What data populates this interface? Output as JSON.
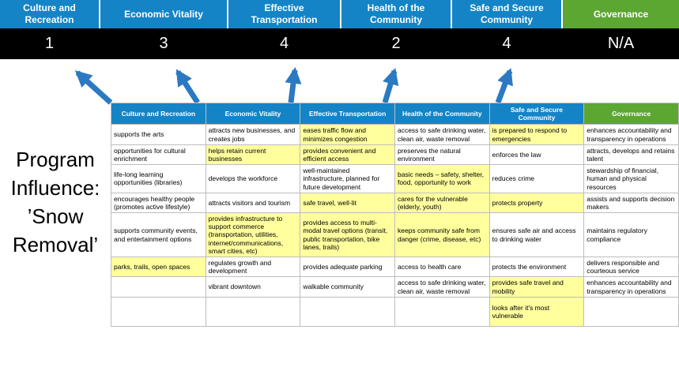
{
  "title": {
    "lines": [
      "Program",
      "Influence:",
      "’Snow",
      "Removal’"
    ]
  },
  "banner": {
    "columns": [
      {
        "label": "Culture and Recreation",
        "score": "1"
      },
      {
        "label": "Economic Vitality",
        "score": "3"
      },
      {
        "label": "Effective Transportation",
        "score": "4"
      },
      {
        "label": "Health of the Community",
        "score": "2"
      },
      {
        "label": "Safe and Secure Community",
        "score": "4"
      },
      {
        "label": "Governance",
        "score": "N/A"
      }
    ]
  },
  "colors": {
    "header_blue": "#1484c6",
    "header_green": "#5ca632",
    "highlight_yellow": "#ffff9e",
    "score_bar_black": "#000000",
    "arrow_blue": "#2b79c2",
    "grid_gray": "#bdbdbd"
  },
  "matrix": {
    "headers": [
      "Culture and Recreation",
      "Economic Vitality",
      "Effective Transportation",
      "Health of the Community",
      "Safe and Secure Community",
      "Governance"
    ],
    "rows": [
      [
        {
          "text": "supports the arts",
          "hl": false
        },
        {
          "text": "attracts new businesses, and creates jobs",
          "hl": false
        },
        {
          "text": "eases traffic flow and minimizes congestion",
          "hl": true
        },
        {
          "text": "access to safe drinking water, clean air, waste removal",
          "hl": false
        },
        {
          "text": "is prepared to respond to emergencies",
          "hl": true
        },
        {
          "text": "enhances accountability and transparency in operations",
          "hl": false
        }
      ],
      [
        {
          "text": "opportunities for cultural enrichment",
          "hl": false
        },
        {
          "text": "helps retain current businesses",
          "hl": true
        },
        {
          "text": "provides convenient and efficient access",
          "hl": true
        },
        {
          "text": "preserves the natural environment",
          "hl": false
        },
        {
          "text": "enforces the law",
          "hl": false
        },
        {
          "text": "attracts, develops and retains talent",
          "hl": false
        }
      ],
      [
        {
          "text": "life-long learning opportunities (libraries)",
          "hl": false
        },
        {
          "text": "develops the workforce",
          "hl": false
        },
        {
          "text": "well-maintained infrastructure, planned for future development",
          "hl": false
        },
        {
          "text": "basic needs – safety, shelter, food, opportunity to work",
          "hl": true
        },
        {
          "text": "reduces crime",
          "hl": false
        },
        {
          "text": "stewardship of financial, human and physical resources",
          "hl": false
        }
      ],
      [
        {
          "text": "encourages healthy people (promotes active lifestyle)",
          "hl": false
        },
        {
          "text": "attracts visitors and tourism",
          "hl": false
        },
        {
          "text": "safe travel, well-lit",
          "hl": true
        },
        {
          "text": "cares for the vulnerable (elderly, youth)",
          "hl": true
        },
        {
          "text": "protects property",
          "hl": true
        },
        {
          "text": "assists and supports decision makers",
          "hl": false
        }
      ],
      [
        {
          "text": "supports community events, and entertainment options",
          "hl": false
        },
        {
          "text": "provides infrastructure to support commerce (transportation, utilities, internet/communications, smart cities, etc)",
          "hl": true
        },
        {
          "text": "provides access to multi-modal travel options (transit, public transportation, bike lanes, trails)",
          "hl": true
        },
        {
          "text": "keeps community safe from danger (crime, disease, etc)",
          "hl": true
        },
        {
          "text": "ensures safe air and access to drinking water",
          "hl": false
        },
        {
          "text": "maintains regulatory compliance",
          "hl": false
        }
      ],
      [
        {
          "text": "parks, trails, open spaces",
          "hl": true
        },
        {
          "text": "regulates growth and development",
          "hl": false
        },
        {
          "text": "provides adequate parking",
          "hl": false
        },
        {
          "text": "access to health care",
          "hl": false
        },
        {
          "text": "protects the environment",
          "hl": false
        },
        {
          "text": "delivers responsible and courteous service",
          "hl": false
        }
      ],
      [
        {
          "text": "",
          "hl": false
        },
        {
          "text": "vibrant downtown",
          "hl": false
        },
        {
          "text": "walkable community",
          "hl": false
        },
        {
          "text": "access to safe drinking water, clean air, waste removal",
          "hl": false
        },
        {
          "text": "provides safe travel and mobility",
          "hl": true
        },
        {
          "text": "enhances accountability and transparency in operations",
          "hl": false
        }
      ],
      [
        {
          "text": "",
          "hl": false
        },
        {
          "text": "",
          "hl": false
        },
        {
          "text": "",
          "hl": false
        },
        {
          "text": "",
          "hl": false
        },
        {
          "text": "looks after it's most vulnerable",
          "hl": true
        },
        {
          "text": "",
          "hl": false
        }
      ]
    ]
  }
}
